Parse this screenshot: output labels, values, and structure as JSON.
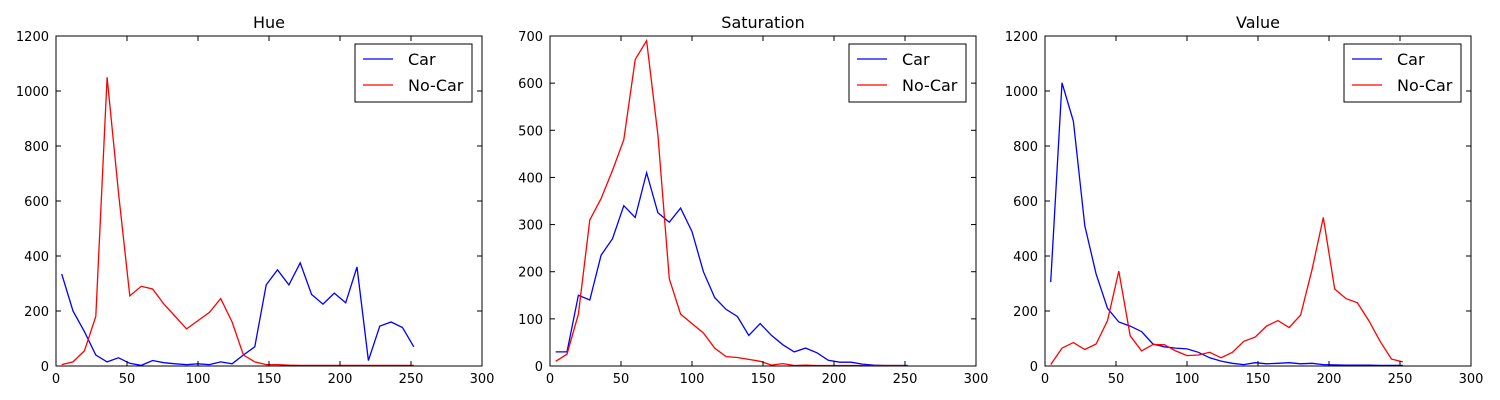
{
  "colors": {
    "car": "#0000ff",
    "no_car": "#ff0000"
  },
  "chart_data": [
    {
      "type": "line",
      "title": "Hue",
      "xlim": [
        0,
        300
      ],
      "ylim": [
        0,
        1200
      ],
      "xticks": [
        0,
        50,
        100,
        150,
        200,
        250,
        300
      ],
      "yticks": [
        0,
        200,
        400,
        600,
        800,
        1000,
        1200
      ],
      "legend": "top-right",
      "series": [
        {
          "name": "Car",
          "color": "#0000ff",
          "x": [
            4,
            12,
            20,
            28,
            36,
            44,
            52,
            60,
            68,
            76,
            84,
            92,
            100,
            108,
            116,
            124,
            132,
            140,
            148,
            156,
            164,
            172,
            180,
            188,
            196,
            204,
            212,
            220,
            228,
            236,
            244,
            252
          ],
          "y": [
            335,
            200,
            125,
            40,
            15,
            30,
            10,
            2,
            20,
            12,
            8,
            5,
            8,
            5,
            15,
            8,
            40,
            70,
            295,
            350,
            295,
            375,
            260,
            225,
            265,
            230,
            360,
            20,
            145,
            160,
            140,
            70
          ]
        },
        {
          "name": "No-Car",
          "color": "#ff0000",
          "x": [
            4,
            12,
            20,
            28,
            36,
            44,
            52,
            60,
            68,
            76,
            84,
            92,
            100,
            108,
            116,
            124,
            132,
            140,
            148,
            156,
            164,
            172,
            180,
            188,
            196,
            204,
            212,
            220,
            228,
            236,
            244,
            252
          ],
          "y": [
            5,
            15,
            55,
            180,
            1050,
            630,
            255,
            290,
            280,
            225,
            180,
            135,
            165,
            195,
            245,
            160,
            40,
            15,
            5,
            5,
            3,
            2,
            2,
            2,
            2,
            2,
            2,
            2,
            2,
            2,
            2,
            2
          ]
        }
      ]
    },
    {
      "type": "line",
      "title": "Saturation",
      "xlim": [
        0,
        300
      ],
      "ylim": [
        0,
        700
      ],
      "xticks": [
        0,
        50,
        100,
        150,
        200,
        250,
        300
      ],
      "yticks": [
        0,
        100,
        200,
        300,
        400,
        500,
        600,
        700
      ],
      "legend": "top-right",
      "series": [
        {
          "name": "Car",
          "color": "#0000ff",
          "x": [
            4,
            12,
            20,
            28,
            36,
            44,
            52,
            60,
            68,
            76,
            84,
            92,
            100,
            108,
            116,
            124,
            132,
            140,
            148,
            156,
            164,
            172,
            180,
            188,
            196,
            204,
            212,
            220,
            228,
            236,
            244,
            252
          ],
          "y": [
            30,
            30,
            150,
            140,
            235,
            270,
            340,
            315,
            410,
            325,
            305,
            335,
            285,
            200,
            145,
            120,
            105,
            65,
            90,
            65,
            45,
            30,
            38,
            28,
            12,
            8,
            8,
            4,
            2,
            1,
            1,
            1
          ]
        },
        {
          "name": "No-Car",
          "color": "#ff0000",
          "x": [
            4,
            12,
            20,
            28,
            36,
            44,
            52,
            60,
            68,
            76,
            84,
            92,
            100,
            108,
            116,
            124,
            132,
            140,
            148,
            156,
            164,
            172,
            180,
            188,
            196,
            204,
            212,
            220,
            228,
            236,
            244,
            252
          ],
          "y": [
            10,
            25,
            110,
            310,
            355,
            415,
            480,
            650,
            690,
            490,
            185,
            110,
            90,
            70,
            38,
            20,
            18,
            14,
            10,
            2,
            5,
            1,
            2,
            1,
            1,
            1,
            1,
            1,
            1,
            1,
            1,
            1
          ]
        }
      ]
    },
    {
      "type": "line",
      "title": "Value",
      "xlim": [
        0,
        300
      ],
      "ylim": [
        0,
        1200
      ],
      "xticks": [
        0,
        50,
        100,
        150,
        200,
        250,
        300
      ],
      "yticks": [
        0,
        200,
        400,
        600,
        800,
        1000,
        1200
      ],
      "legend": "top-right",
      "series": [
        {
          "name": "Car",
          "color": "#0000ff",
          "x": [
            4,
            12,
            20,
            28,
            36,
            44,
            52,
            60,
            68,
            76,
            84,
            92,
            100,
            108,
            116,
            124,
            132,
            140,
            148,
            156,
            164,
            172,
            180,
            188,
            196,
            204,
            212,
            220,
            228,
            236,
            244,
            252
          ],
          "y": [
            305,
            1030,
            890,
            510,
            335,
            210,
            160,
            145,
            125,
            80,
            70,
            65,
            62,
            50,
            30,
            18,
            10,
            5,
            12,
            8,
            10,
            12,
            8,
            10,
            5,
            4,
            3,
            3,
            3,
            2,
            2,
            2
          ]
        },
        {
          "name": "No-Car",
          "color": "#ff0000",
          "x": [
            4,
            12,
            20,
            28,
            36,
            44,
            52,
            60,
            68,
            76,
            84,
            92,
            100,
            108,
            116,
            124,
            132,
            140,
            148,
            156,
            164,
            172,
            180,
            188,
            196,
            204,
            212,
            220,
            228,
            236,
            244,
            252
          ],
          "y": [
            5,
            65,
            85,
            60,
            80,
            165,
            345,
            110,
            55,
            78,
            78,
            55,
            38,
            40,
            50,
            30,
            50,
            90,
            105,
            145,
            165,
            140,
            185,
            350,
            540,
            280,
            245,
            230,
            165,
            90,
            25,
            15
          ]
        }
      ]
    }
  ]
}
